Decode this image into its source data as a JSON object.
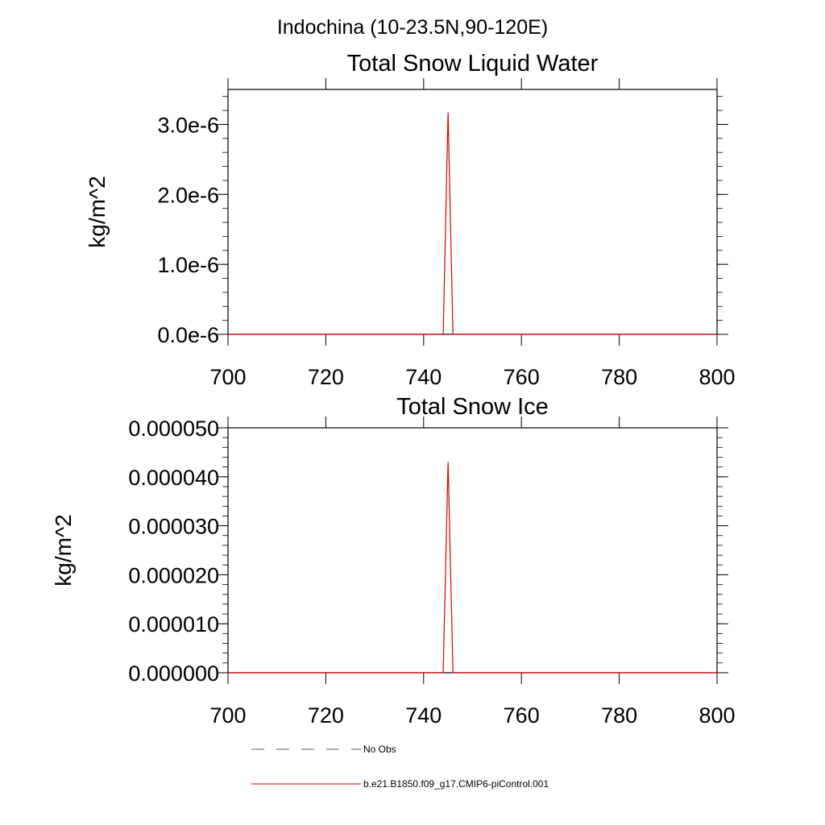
{
  "figure": {
    "title": "Indochina (10-23.5N,90-120E)"
  },
  "chart_data": [
    {
      "type": "line",
      "title": "Total Snow Liquid Water",
      "xlabel": "",
      "ylabel": "kg/m^2",
      "xlim": [
        700,
        800
      ],
      "ylim": [
        0,
        3.5e-06
      ],
      "x_ticks": [
        700,
        720,
        740,
        760,
        780,
        800
      ],
      "x_tick_labels": [
        "700",
        "720",
        "740",
        "760",
        "780",
        "800"
      ],
      "y_ticks": [
        0,
        1e-06,
        2e-06,
        3e-06
      ],
      "y_tick_labels": [
        "0.0e-6",
        "1.0e-6",
        "2.0e-6",
        "3.0e-6"
      ],
      "grid": false,
      "series": [
        {
          "name": "b.e21.B1850.f09_g17.CMIP6-piControl.001",
          "color": "#d40000",
          "x": [
            700,
            744,
            745,
            746,
            800
          ],
          "y": [
            0,
            0,
            3.17e-06,
            0,
            0
          ]
        }
      ]
    },
    {
      "type": "line",
      "title": "Total Snow Ice",
      "xlabel": "",
      "ylabel": "kg/m^2",
      "xlim": [
        700,
        800
      ],
      "ylim": [
        0,
        5e-05
      ],
      "x_ticks": [
        700,
        720,
        740,
        760,
        780,
        800
      ],
      "x_tick_labels": [
        "700",
        "720",
        "740",
        "760",
        "780",
        "800"
      ],
      "y_ticks": [
        0,
        1e-05,
        2e-05,
        3e-05,
        4e-05,
        5e-05
      ],
      "y_tick_labels": [
        "0.000000",
        "0.000010",
        "0.000020",
        "0.000030",
        "0.000040",
        "0.000050"
      ],
      "grid": false,
      "series": [
        {
          "name": "b.e21.B1850.f09_g17.CMIP6-piControl.001",
          "color": "#d40000",
          "x": [
            700,
            744,
            745,
            746,
            800
          ],
          "y": [
            0,
            0,
            4.3e-05,
            0,
            0
          ]
        }
      ]
    }
  ],
  "legend": {
    "placement": "bottom-left",
    "items": [
      {
        "label": "No Obs",
        "style": "dashed",
        "color": "#5a5a7a"
      },
      {
        "label": "b.e21.B1850.f09_g17.CMIP6-piControl.001",
        "style": "solid",
        "color": "#d40000"
      }
    ]
  }
}
